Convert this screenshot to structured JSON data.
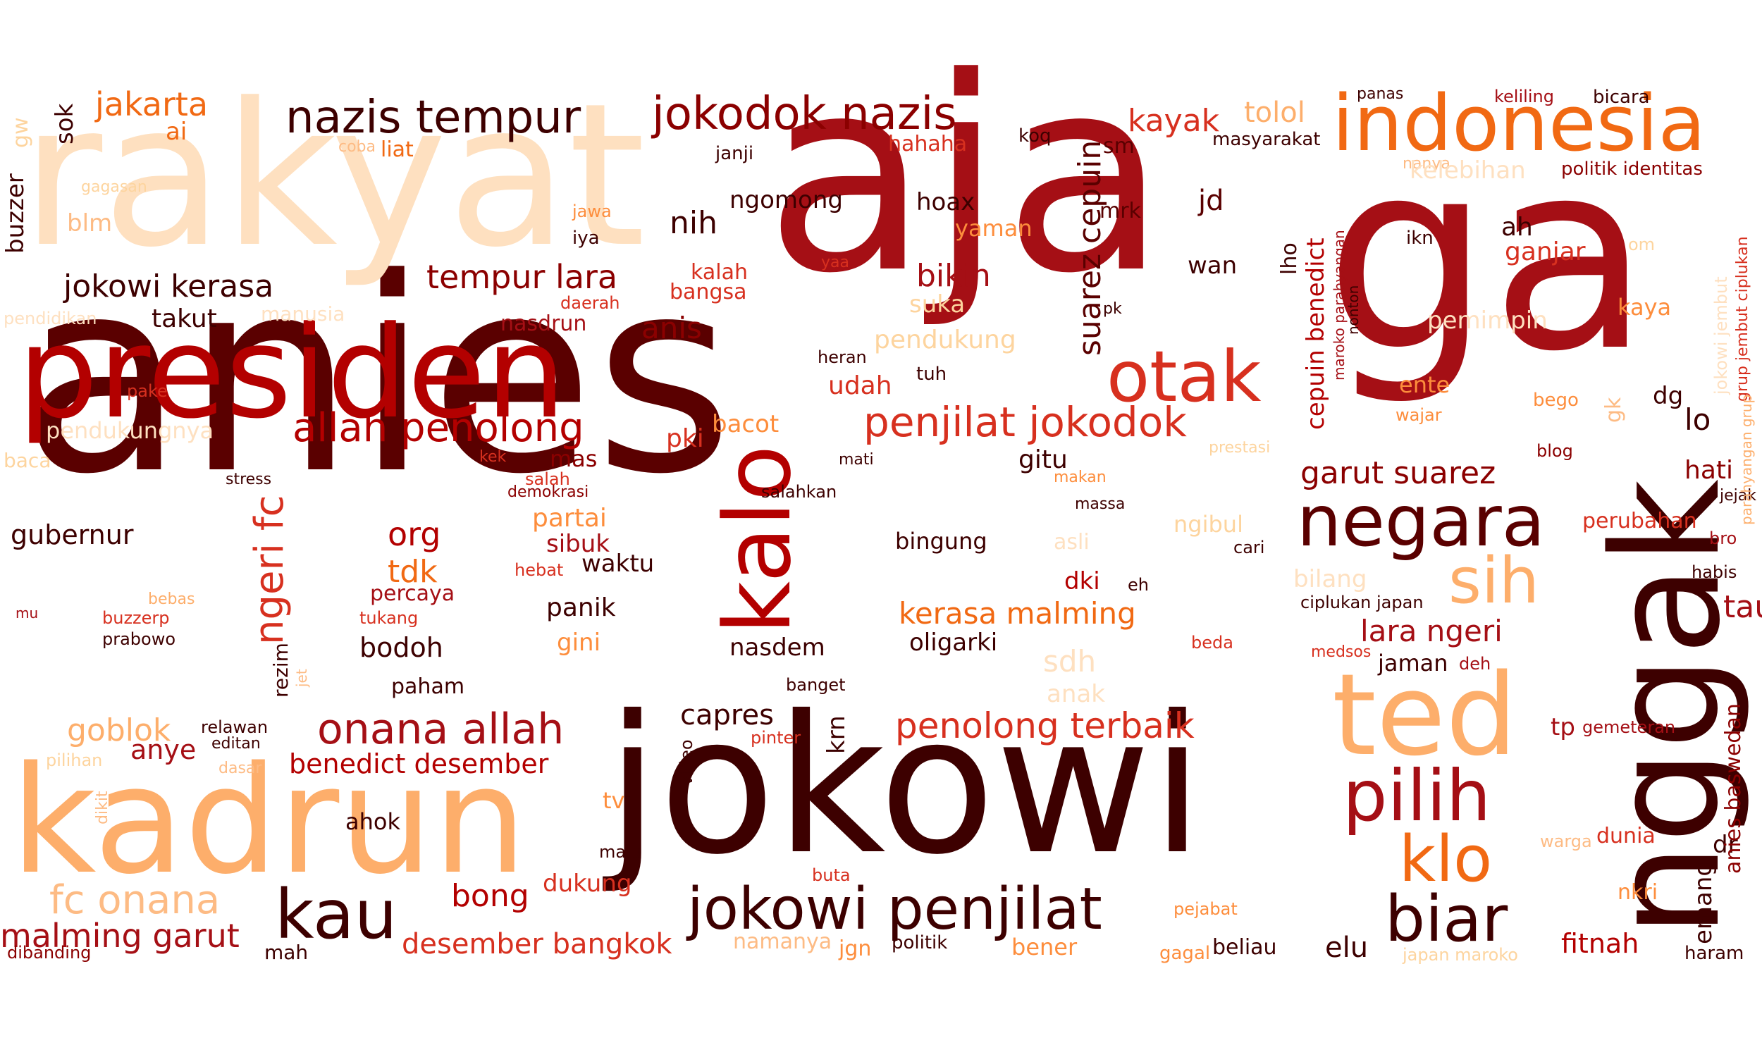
{
  "palette": {
    "darkest": "#5a0000",
    "dark": "#8b0000",
    "red": "#b30000",
    "red_orange": "#d7301f",
    "orange": "#ef6548",
    "light_orange": "#fc8d59",
    "peach": "#fdbb84",
    "pale": "#fdd49e",
    "palest": "#fee8c8",
    "background": "#ffffff"
  },
  "words": [
    "anies",
    "jokowi",
    "aja",
    "ga",
    "rakyat",
    "presiden",
    "nggak",
    "kadrun",
    "kalo",
    "ted",
    "indonesia",
    "negara",
    "otak",
    "pilih",
    "nazis tempur",
    "jokodok nazis",
    "kau",
    "biar",
    "sih",
    "klo",
    "jokowi penjilat",
    "penjilat jokodok",
    "allah penolong",
    "onana allah",
    "fc onana",
    "malming garut",
    "ngeri fc",
    "jakarta",
    "jokowi kerasa",
    "tempur lara",
    "garut suarez",
    "suarez cepuin",
    "lara ngeri",
    "kerasa malming",
    "penolong terbaik",
    "benedict desember",
    "desember bangkok",
    "cepuin benedict",
    "kayak",
    "tolol",
    "bikin",
    "anis",
    "org",
    "tdk",
    "elu",
    "fitnah",
    "capres",
    "gubernur",
    "goblok",
    "bong",
    "nih",
    "sok",
    "gw",
    "buzzer",
    "blm",
    "takut",
    "ai",
    "liat",
    "coba",
    "gagasan",
    "pendidikan",
    "manusia",
    "pendukungnya",
    "pake",
    "baca",
    "stress",
    "mu",
    "bebas",
    "buzzerp",
    "prabowo",
    "rezim",
    "jet",
    "relawan",
    "editan",
    "pilihan",
    "dasar",
    "dikit",
    "anye",
    "ahok",
    "mah",
    "dibanding",
    "ngomong",
    "hoax",
    "yaman",
    "jd",
    "mrk",
    "sm",
    "koq",
    "janji",
    "hahaha",
    "jawa",
    "iya",
    "yaa",
    "kalah",
    "bangsa",
    "daerah",
    "nasdrun",
    "suka",
    "pendukung",
    "heran",
    "tuh",
    "udah",
    "pki",
    "bacot",
    "mas",
    "gitu",
    "kek",
    "salah",
    "demokrasi",
    "salahkan",
    "mati",
    "makan",
    "massa",
    "partai",
    "sibuk",
    "waktu",
    "hebat",
    "percaya",
    "tukang",
    "panik",
    "gini",
    "bodoh",
    "paham",
    "nasdem",
    "oligarki",
    "banget",
    "bingung",
    "dki",
    "eh",
    "krn",
    "video",
    "pinter",
    "tv",
    "dukung",
    "malu",
    "buta",
    "namanya",
    "jgn",
    "politik",
    "bener",
    "pejabat",
    "gagal",
    "beliau",
    "japan maroko",
    "masyarakat",
    "panas",
    "keliling",
    "bicara",
    "nanya",
    "kelebihan",
    "politik identitas",
    "ikn",
    "ah",
    "ganjar",
    "om",
    "wan",
    "lho",
    "maroko parahyangan",
    "nonton",
    "pk",
    "pemimpin",
    "kaya",
    "ente",
    "wajar",
    "bego",
    "gk",
    "dg",
    "lo",
    "prestasi",
    "blog",
    "hati",
    "jejak",
    "perubahan",
    "bro",
    "ngibul",
    "asli",
    "cari",
    "bilang",
    "ciplukan japan",
    "habis",
    "tau",
    "jaman",
    "deh",
    "medsos",
    "beda",
    "sdh",
    "anak",
    "tp",
    "gemeteran",
    "dunia",
    "warga",
    "nkri",
    "emang",
    "dr",
    "haram",
    "anies baswedan",
    "jokowi jembut",
    "grup jembut ciplukan",
    "parahyangan grup"
  ]
}
